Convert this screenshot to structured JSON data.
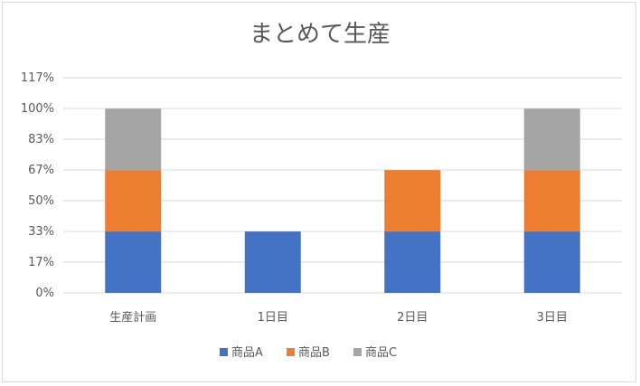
{
  "chart_data": {
    "type": "bar",
    "stacked": true,
    "title": "まとめて生産",
    "categories": [
      "生産計画",
      "1日目",
      "2日目",
      "3日目"
    ],
    "series": [
      {
        "name": "商品A",
        "color": "#4472C4",
        "values": [
          33.3,
          33.3,
          33.3,
          33.3
        ]
      },
      {
        "name": "商品B",
        "color": "#ED7D31",
        "values": [
          33.3,
          0,
          33.3,
          33.3
        ]
      },
      {
        "name": "商品C",
        "color": "#A5A5A5",
        "values": [
          33.3,
          0,
          0,
          33.3
        ]
      }
    ],
    "y_ticks": [
      0,
      16.67,
      33.33,
      50,
      66.67,
      83.33,
      100,
      116.67
    ],
    "y_tick_labels": [
      "0%",
      "17%",
      "33%",
      "50%",
      "67%",
      "83%",
      "100%",
      "117%"
    ],
    "ylim": [
      0,
      116.67
    ],
    "grid": true,
    "legend_position": "bottom"
  }
}
